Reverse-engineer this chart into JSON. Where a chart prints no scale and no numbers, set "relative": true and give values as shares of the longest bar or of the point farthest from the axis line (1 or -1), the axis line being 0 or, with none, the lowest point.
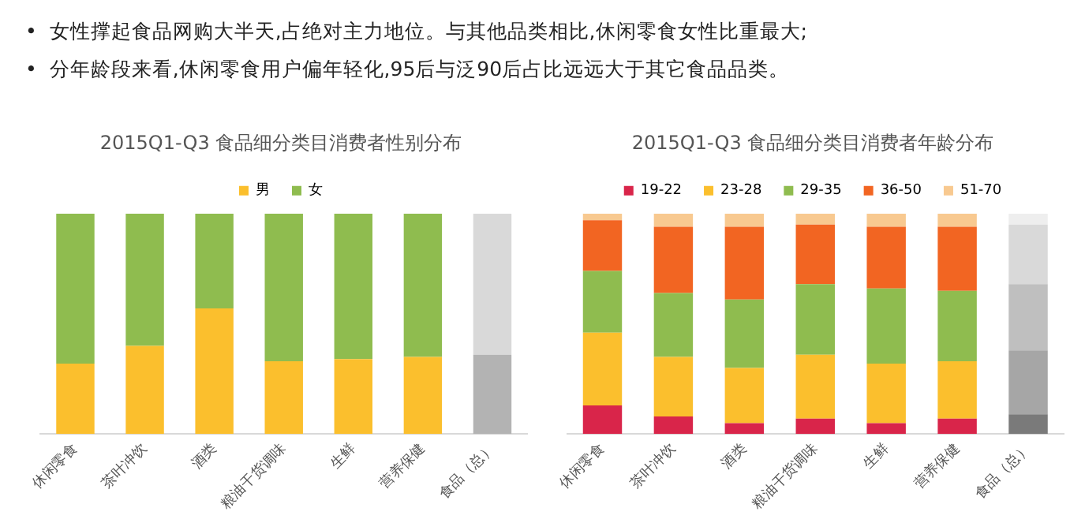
{
  "chart_data": [
    {
      "type": "bar",
      "title": "2015Q1-Q3 食品细分类目消费者性别分布",
      "categories": [
        "休闲零食",
        "茶叶冲饮",
        "酒类",
        "粮油干货调味",
        "生鲜",
        "营养保健",
        "食品（总）"
      ],
      "stacked": true,
      "relative": true,
      "legend": "top",
      "grid": false,
      "annotations": [
        "•  女性撑起食品网购大半天,占绝对主力地位。与其他品类相比,休闲零食女性比重最大;",
        "•  分年龄段来看,休闲零食用户偏年轻化,95后与泛90后占比远远大于其它食品品类。"
      ],
      "series": [
        {
          "name": "男",
          "color": "#fbbf2d",
          "colors": [
            "#fbbf2d",
            "#fbbf2d",
            "#fbbf2d",
            "#fbbf2d",
            "#fbbf2d",
            "#fbbf2d",
            "#b3b3b3"
          ],
          "values": [
            0.32,
            0.4,
            0.57,
            0.33,
            0.34,
            0.35,
            0.36
          ]
        },
        {
          "name": "女",
          "color": "#8fbc4f",
          "colors": [
            "#8fbc4f",
            "#8fbc4f",
            "#8fbc4f",
            "#8fbc4f",
            "#8fbc4f",
            "#8fbc4f",
            "#d9d9d9"
          ],
          "values": [
            0.68,
            0.6,
            0.43,
            0.67,
            0.66,
            0.65,
            0.64
          ]
        }
      ]
    },
    {
      "type": "bar",
      "title": "2015Q1-Q3 食品细分类目消费者年龄分布",
      "categories": [
        "休闲零食",
        "茶叶冲饮",
        "酒类",
        "粮油干货调味",
        "生鲜",
        "营养保健",
        "食品（总）"
      ],
      "stacked": true,
      "relative": true,
      "legend": "top",
      "grid": false,
      "series": [
        {
          "name": "19-22",
          "color": "#d9254a",
          "colors": [
            "#d9254a",
            "#d9254a",
            "#d9254a",
            "#d9254a",
            "#d9254a",
            "#d9254a",
            "#7a7a7a"
          ],
          "values": [
            0.13,
            0.08,
            0.05,
            0.07,
            0.05,
            0.07,
            0.09
          ]
        },
        {
          "name": "23-28",
          "color": "#fbbf2d",
          "colors": [
            "#fbbf2d",
            "#fbbf2d",
            "#fbbf2d",
            "#fbbf2d",
            "#fbbf2d",
            "#fbbf2d",
            "#a6a6a6"
          ],
          "values": [
            0.33,
            0.27,
            0.25,
            0.29,
            0.27,
            0.26,
            0.29
          ]
        },
        {
          "name": "29-35",
          "color": "#8fbc4f",
          "colors": [
            "#8fbc4f",
            "#8fbc4f",
            "#8fbc4f",
            "#8fbc4f",
            "#8fbc4f",
            "#8fbc4f",
            "#bfbfbf"
          ],
          "values": [
            0.28,
            0.29,
            0.31,
            0.32,
            0.34,
            0.32,
            0.3
          ]
        },
        {
          "name": "36-50",
          "color": "#f26522",
          "colors": [
            "#f26522",
            "#f26522",
            "#f26522",
            "#f26522",
            "#f26522",
            "#f26522",
            "#d9d9d9"
          ],
          "values": [
            0.23,
            0.3,
            0.33,
            0.27,
            0.28,
            0.29,
            0.27
          ]
        },
        {
          "name": "51-70",
          "color": "#f8c990",
          "colors": [
            "#f8c990",
            "#f8c990",
            "#f8c990",
            "#f8c990",
            "#f8c990",
            "#f8c990",
            "#eeeeee"
          ],
          "values": [
            0.03,
            0.06,
            0.06,
            0.05,
            0.06,
            0.06,
            0.05
          ]
        }
      ]
    }
  ]
}
